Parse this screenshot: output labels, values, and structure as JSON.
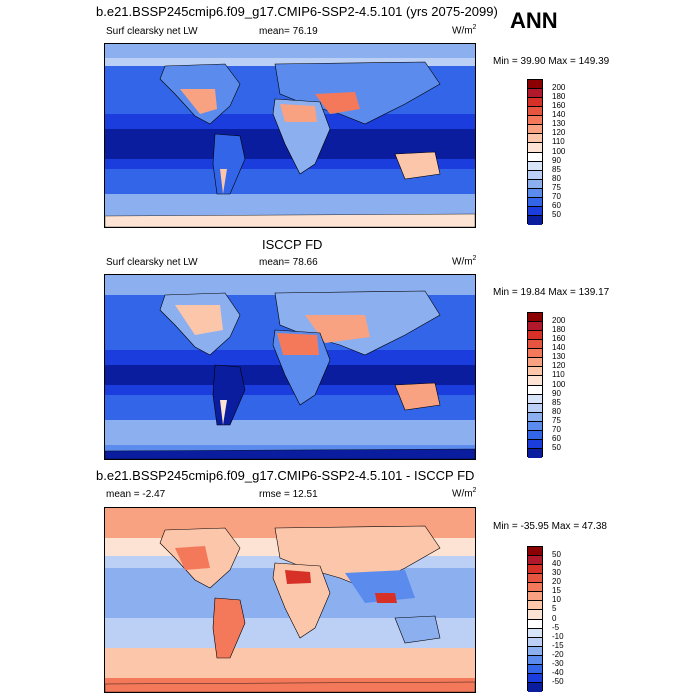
{
  "header": {
    "title1": "b.e21.BSSP245cmip6.f09_g17.CMIP6-SSP2-4.5.101 (yrs 2075-2099)",
    "season": "ANN"
  },
  "panels": [
    {
      "name": "model",
      "left_label": "Surf clearsky net LW",
      "center_label": "mean=  76.19",
      "units_base": "W/m",
      "units_exp": "2",
      "minmax": "Min =  39.90 Max = 149.39",
      "colorbar": {
        "ticks": [
          "200",
          "180",
          "160",
          "140",
          "130",
          "120",
          "110",
          "100",
          "90",
          "85",
          "80",
          "75",
          "70",
          "60",
          "50"
        ],
        "colors": [
          "#8b0000",
          "#b2182b",
          "#d73027",
          "#e5553f",
          "#f4795b",
          "#f9a282",
          "#fcc6ab",
          "#fde3d3",
          "#ffffff",
          "#d8e4f8",
          "#bcd0f5",
          "#8caff0",
          "#5b8ced",
          "#3265e8",
          "#1c3ddd",
          "#0a1d9e"
        ]
      }
    },
    {
      "name": "obs",
      "title": "ISCCP FD",
      "left_label": "Surf clearsky net LW",
      "center_label": "mean=  78.66",
      "units_base": "W/m",
      "units_exp": "2",
      "minmax": "Min =  19.84 Max = 139.17",
      "colorbar": {
        "ticks": [
          "200",
          "180",
          "160",
          "140",
          "130",
          "120",
          "110",
          "100",
          "90",
          "85",
          "80",
          "75",
          "70",
          "60",
          "50"
        ],
        "colors": [
          "#8b0000",
          "#b2182b",
          "#d73027",
          "#e5553f",
          "#f4795b",
          "#f9a282",
          "#fcc6ab",
          "#fde3d3",
          "#ffffff",
          "#d8e4f8",
          "#bcd0f5",
          "#8caff0",
          "#5b8ced",
          "#3265e8",
          "#1c3ddd",
          "#0a1d9e"
        ]
      }
    },
    {
      "name": "diff",
      "title": "b.e21.BSSP245cmip6.f09_g17.CMIP6-SSP2-4.5.101 - ISCCP FD",
      "left_label": "mean =  -2.47",
      "center_label": "rmse =  12.51",
      "units_base": "W/m",
      "units_exp": "2",
      "minmax": "Min = -35.95 Max =  47.38",
      "colorbar": {
        "ticks": [
          "50",
          "40",
          "30",
          "20",
          "15",
          "10",
          "5",
          "0",
          "-5",
          "-10",
          "-15",
          "-20",
          "-30",
          "-40",
          "-50"
        ],
        "colors": [
          "#8b0000",
          "#b2182b",
          "#d73027",
          "#e5553f",
          "#f4795b",
          "#f9a282",
          "#fcc6ab",
          "#fde3d3",
          "#ffffff",
          "#d8e4f8",
          "#bcd0f5",
          "#8caff0",
          "#5b8ced",
          "#3265e8",
          "#1c3ddd",
          "#0a1d9e"
        ]
      }
    }
  ]
}
